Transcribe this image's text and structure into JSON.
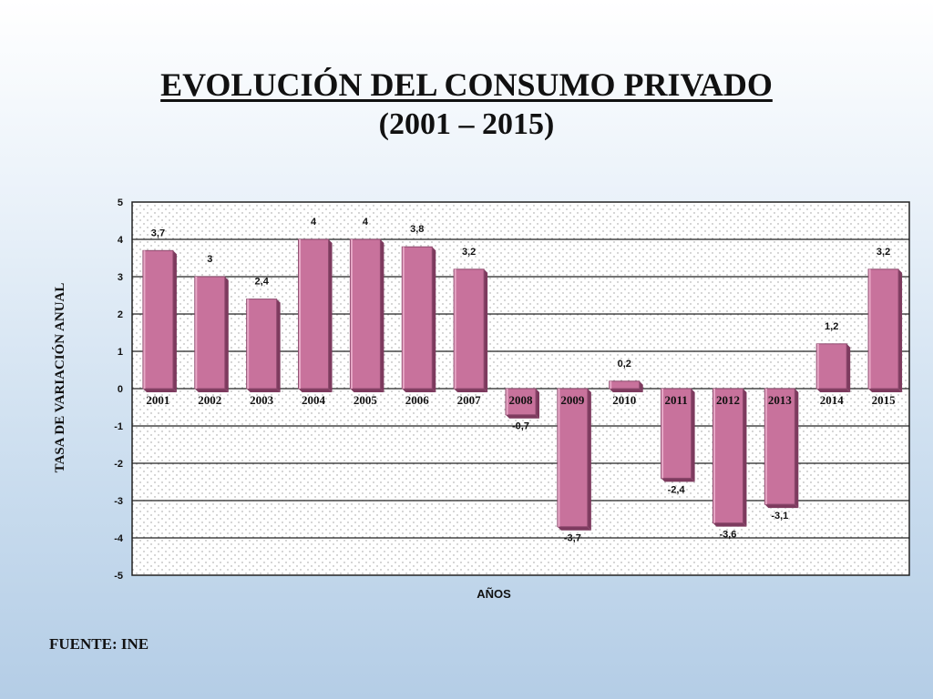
{
  "chart_data": {
    "type": "bar",
    "title": "EVOLUCIÓN DEL CONSUMO PRIVADO",
    "subtitle": "(2001 – 2015)",
    "xlabel": "AÑOS",
    "ylabel": "TASA DE VARIACIÓN ANUAL",
    "ylim": [
      -5,
      5
    ],
    "yticks": [
      "5",
      "4",
      "3",
      "2",
      "1",
      "0",
      "-1",
      "-2",
      "-3",
      "-4",
      "-5"
    ],
    "grid": true,
    "categories": [
      "2001",
      "2002",
      "2003",
      "2004",
      "2005",
      "2006",
      "2007",
      "2008",
      "2009",
      "2010",
      "2011",
      "2012",
      "2013",
      "2014",
      "2015"
    ],
    "values": [
      3.7,
      3,
      2.4,
      4,
      4,
      3.8,
      3.2,
      -0.7,
      -3.7,
      0.2,
      -2.4,
      -3.6,
      -3.1,
      1.2,
      3.2
    ],
    "data_labels": [
      "3,7",
      "3",
      "2,4",
      "4",
      "4",
      "3,8",
      "3,2",
      "-0,7",
      "-3,7",
      "0,2",
      "-2,4",
      "-3,6",
      "-3,1",
      "1,2",
      "3,2"
    ],
    "bar_color": "#c8729c",
    "bar_shadow_color": "#7d3a5e"
  },
  "footer": {
    "source": "FUENTE: INE"
  }
}
